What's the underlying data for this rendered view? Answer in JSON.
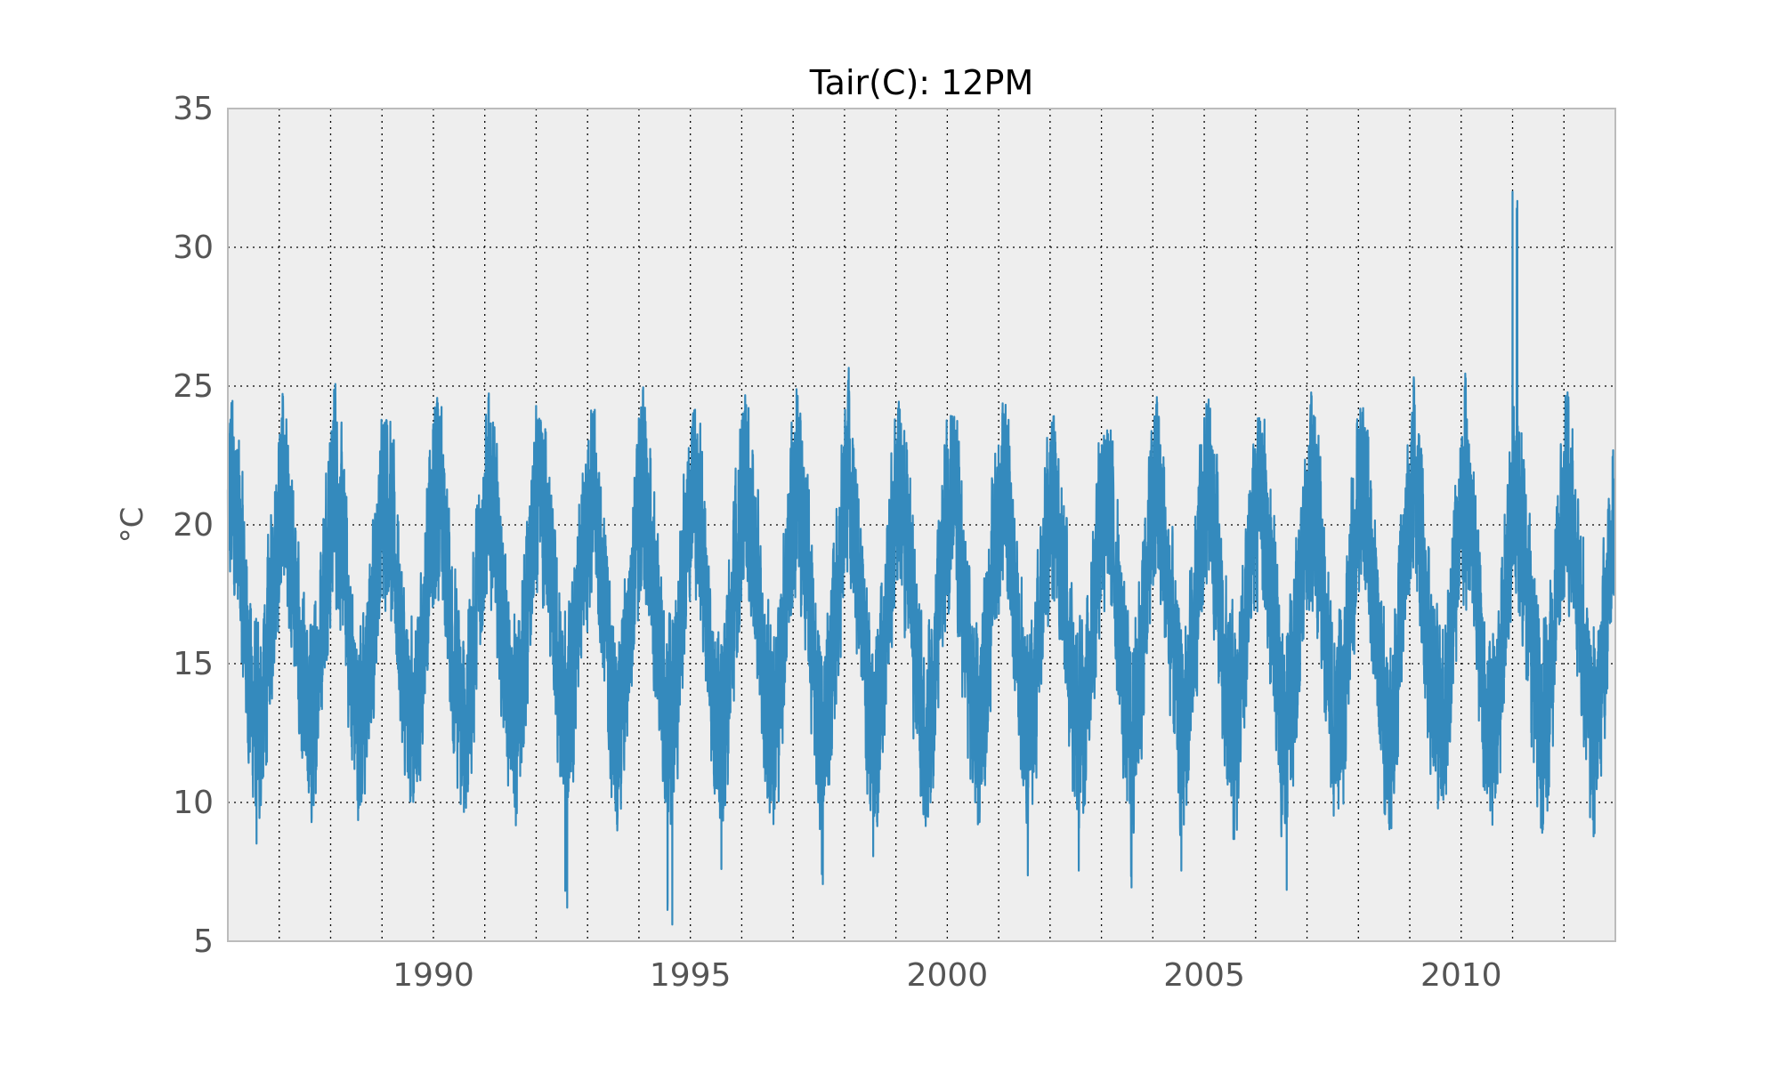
{
  "chart_data": {
    "type": "line",
    "title": "Tair(C): 12PM",
    "xlabel": "",
    "ylabel": "°C",
    "xlim": [
      "1986-01-01",
      "2013-01-01"
    ],
    "ylim": [
      5,
      35
    ],
    "x_ticks": [
      1990,
      1995,
      2000,
      2005,
      2010
    ],
    "x_tick_labels": [
      "1990",
      "1995",
      "2000",
      "2005",
      "2010"
    ],
    "x_minor_gridlines_yearly": true,
    "y_ticks": [
      5,
      10,
      15,
      20,
      25,
      30,
      35
    ],
    "y_tick_labels": [
      "5",
      "10",
      "15",
      "20",
      "25",
      "30",
      "35"
    ],
    "grid": true,
    "grid_style": "dotted",
    "legend": "none",
    "line_color": "#348ABD",
    "plot_background": "#EEEEEE",
    "series": [
      {
        "values_description_note_free": true,
        "sampling": "daily",
        "annual_envelope": [
          {
            "year": 1986,
            "min": 7.8,
            "max": 24.6
          },
          {
            "year": 1987,
            "min": 8.6,
            "max": 25.3
          },
          {
            "year": 1988,
            "min": 9.3,
            "max": 25.1
          },
          {
            "year": 1989,
            "min": 9.9,
            "max": 23.8
          },
          {
            "year": 1990,
            "min": 8.9,
            "max": 24.8
          },
          {
            "year": 1991,
            "min": 8.5,
            "max": 25.5
          },
          {
            "year": 1992,
            "min": 6.1,
            "max": 23.9
          },
          {
            "year": 1993,
            "min": 8.6,
            "max": 24.2
          },
          {
            "year": 1994,
            "min": 5.6,
            "max": 25.1
          },
          {
            "year": 1995,
            "min": 7.4,
            "max": 24.2
          },
          {
            "year": 1996,
            "min": 8.2,
            "max": 24.7
          },
          {
            "year": 1997,
            "min": 6.7,
            "max": 25.0
          },
          {
            "year": 1998,
            "min": 7.8,
            "max": 25.7
          },
          {
            "year": 1999,
            "min": 9.1,
            "max": 24.6
          },
          {
            "year": 2000,
            "min": 8.7,
            "max": 24.0
          },
          {
            "year": 2001,
            "min": 7.0,
            "max": 24.4
          },
          {
            "year": 2002,
            "min": 6.7,
            "max": 24.0
          },
          {
            "year": 2003,
            "min": 6.4,
            "max": 23.5
          },
          {
            "year": 2004,
            "min": 7.1,
            "max": 25.1
          },
          {
            "year": 2005,
            "min": 8.1,
            "max": 25.0
          },
          {
            "year": 2006,
            "min": 6.6,
            "max": 24.0
          },
          {
            "year": 2007,
            "min": 8.9,
            "max": 24.8
          },
          {
            "year": 2008,
            "min": 9.0,
            "max": 24.3
          },
          {
            "year": 2009,
            "min": 9.7,
            "max": 25.7
          },
          {
            "year": 2010,
            "min": 8.8,
            "max": 25.8
          },
          {
            "year": 2011,
            "min": 8.9,
            "max": 32.0
          },
          {
            "year": 2012,
            "min": 7.9,
            "max": 24.8
          }
        ]
      }
    ]
  }
}
